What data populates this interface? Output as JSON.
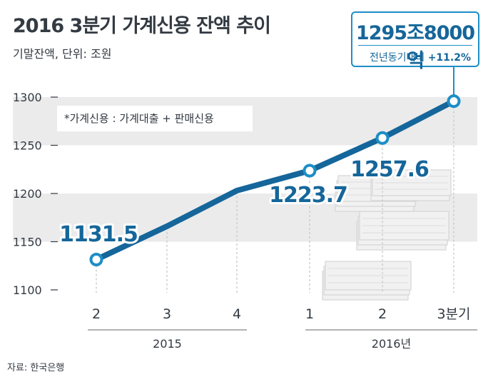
{
  "header": {
    "title": "2016 3분기 가계신용 잔액 추이",
    "subtitle": "기말잔액, 단위: 조원"
  },
  "callout": {
    "total": "1295조8000억",
    "change_label": "전년동기대비",
    "change_value": "+11.2%"
  },
  "note": "*가계신용 : 가계대출 + 판매신용",
  "source": "자료: 한국은행",
  "colors": {
    "line": "#15669a",
    "accent": "#1d8ec6",
    "band": "#ebebeb",
    "text": "#333a42"
  },
  "chart_data": {
    "type": "line",
    "categories": [
      "2",
      "3",
      "4",
      "1",
      "2",
      "3분기"
    ],
    "groups": [
      {
        "label": "2015",
        "categories": [
          "2",
          "3",
          "4"
        ]
      },
      {
        "label": "2016년",
        "categories": [
          "1",
          "2",
          "3분기"
        ]
      }
    ],
    "series": [
      {
        "values": [
          1131.5,
          1166,
          1203,
          1223.7,
          1257.6,
          1295.8
        ]
      }
    ],
    "data_labels": [
      {
        "index": 0,
        "text": "1131.5"
      },
      {
        "index": 3,
        "text": "1223.7"
      },
      {
        "index": 4,
        "text": "1257.6"
      }
    ],
    "highlighted_points": [
      0,
      3,
      4,
      5
    ],
    "yticks": [
      1100,
      1150,
      1200,
      1250,
      1300
    ],
    "ylim": [
      1100,
      1320
    ],
    "grid": "alternating horizontal bands"
  }
}
